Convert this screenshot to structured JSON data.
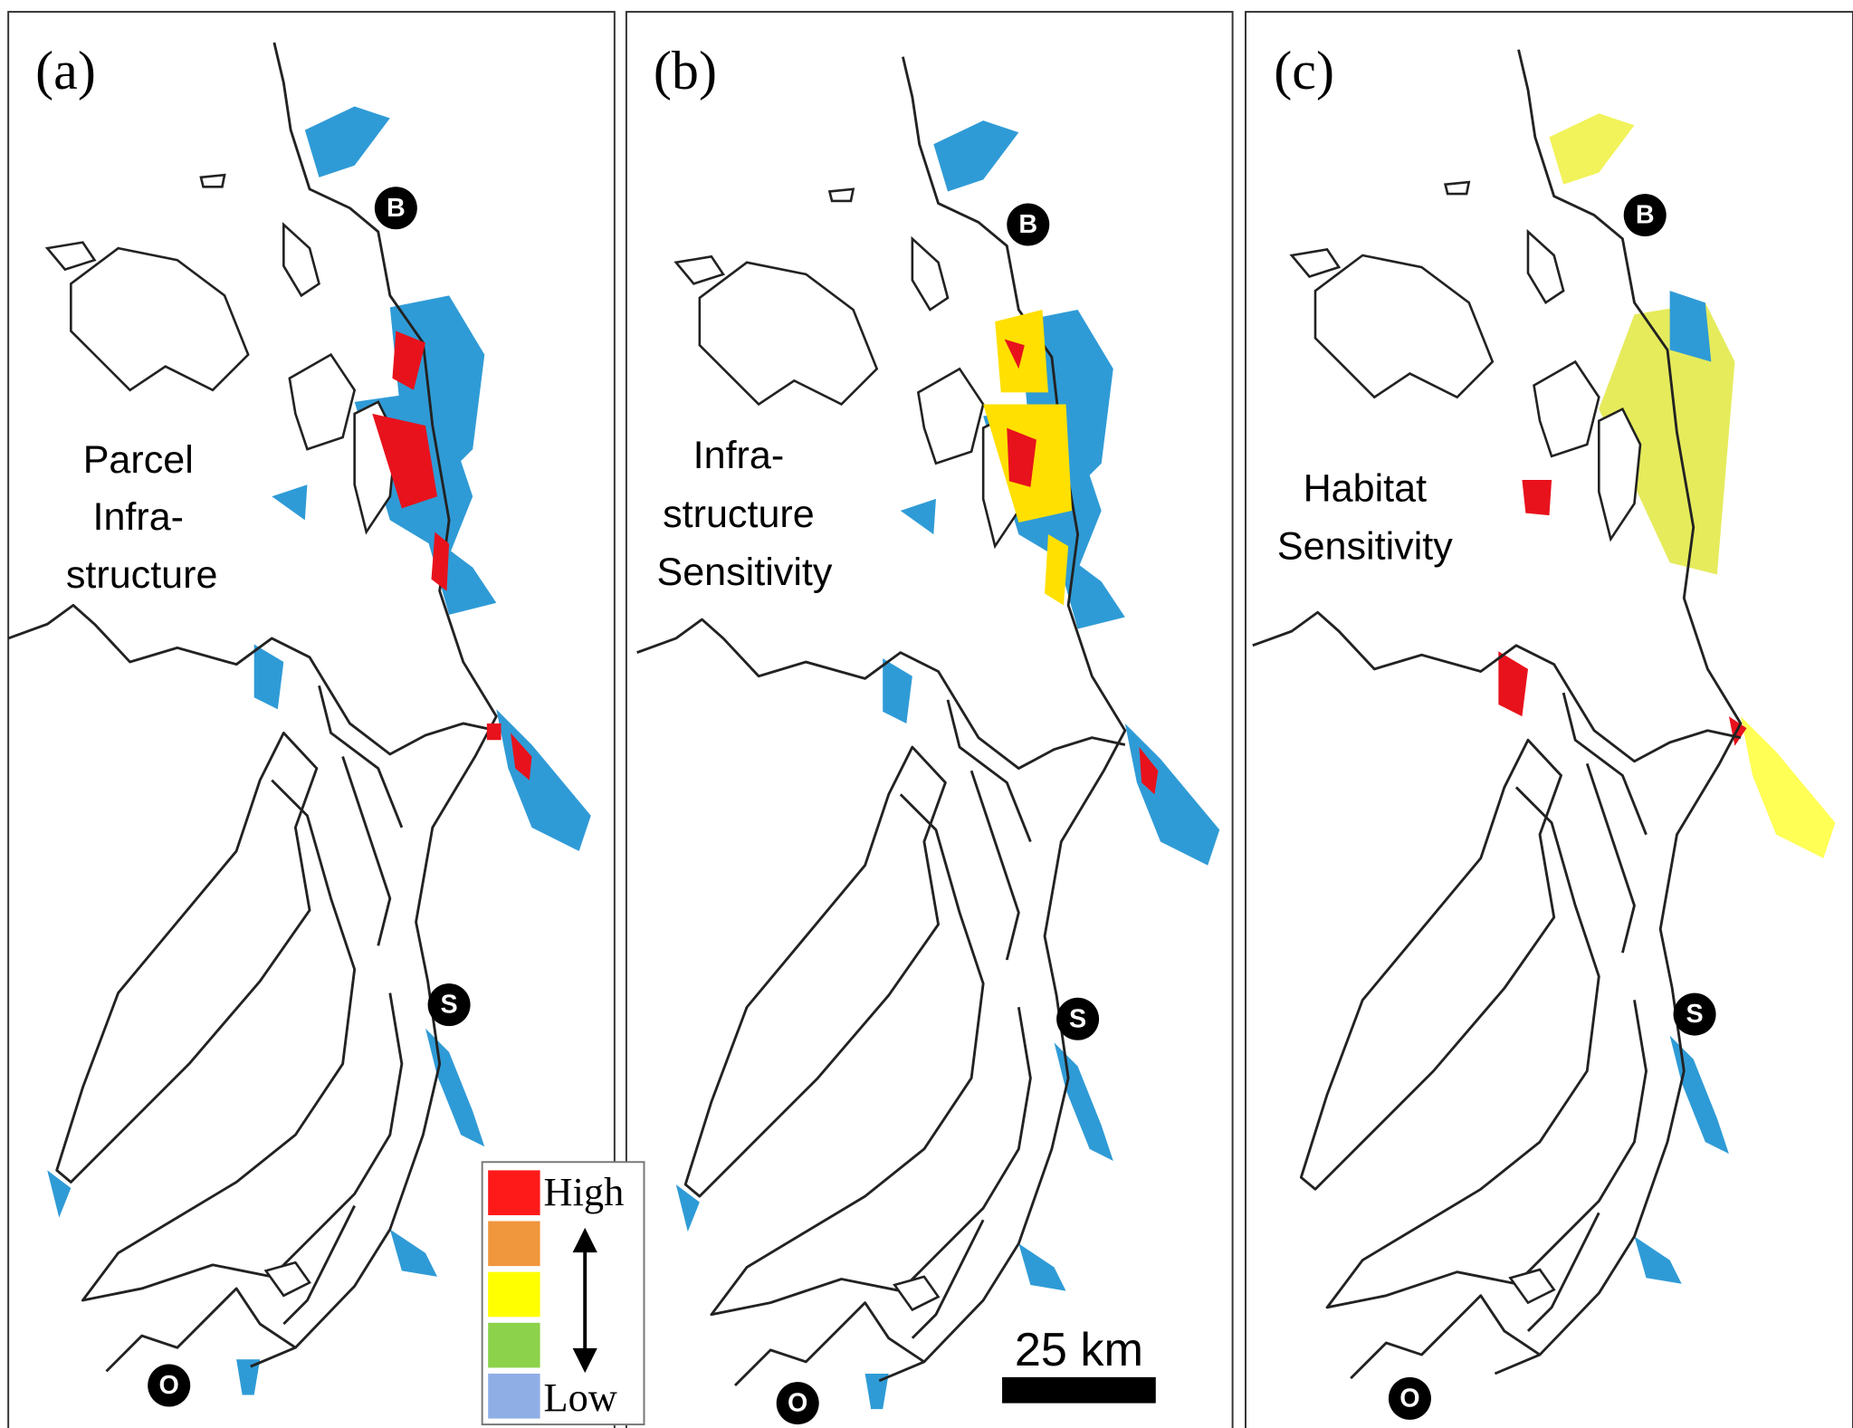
{
  "panels": [
    {
      "label": "(a)",
      "title": [
        "Parcel",
        "Infra-",
        "structure"
      ],
      "cities": [
        "B",
        "S",
        "O"
      ]
    },
    {
      "label": "(b)",
      "title": [
        "Infra-",
        "structure",
        "Sensitivity"
      ],
      "cities": [
        "B",
        "S",
        "O"
      ]
    },
    {
      "label": "(c)",
      "title": [
        "Habitat",
        "Sensitivity"
      ],
      "cities": [
        "B",
        "S",
        "O"
      ]
    }
  ],
  "legend": {
    "high": "High",
    "low": "Low",
    "colors": [
      "#ff1a1a",
      "#f0963c",
      "#ffff00",
      "#8cd24b",
      "#8faee6"
    ]
  },
  "scale_bar": "25 km"
}
